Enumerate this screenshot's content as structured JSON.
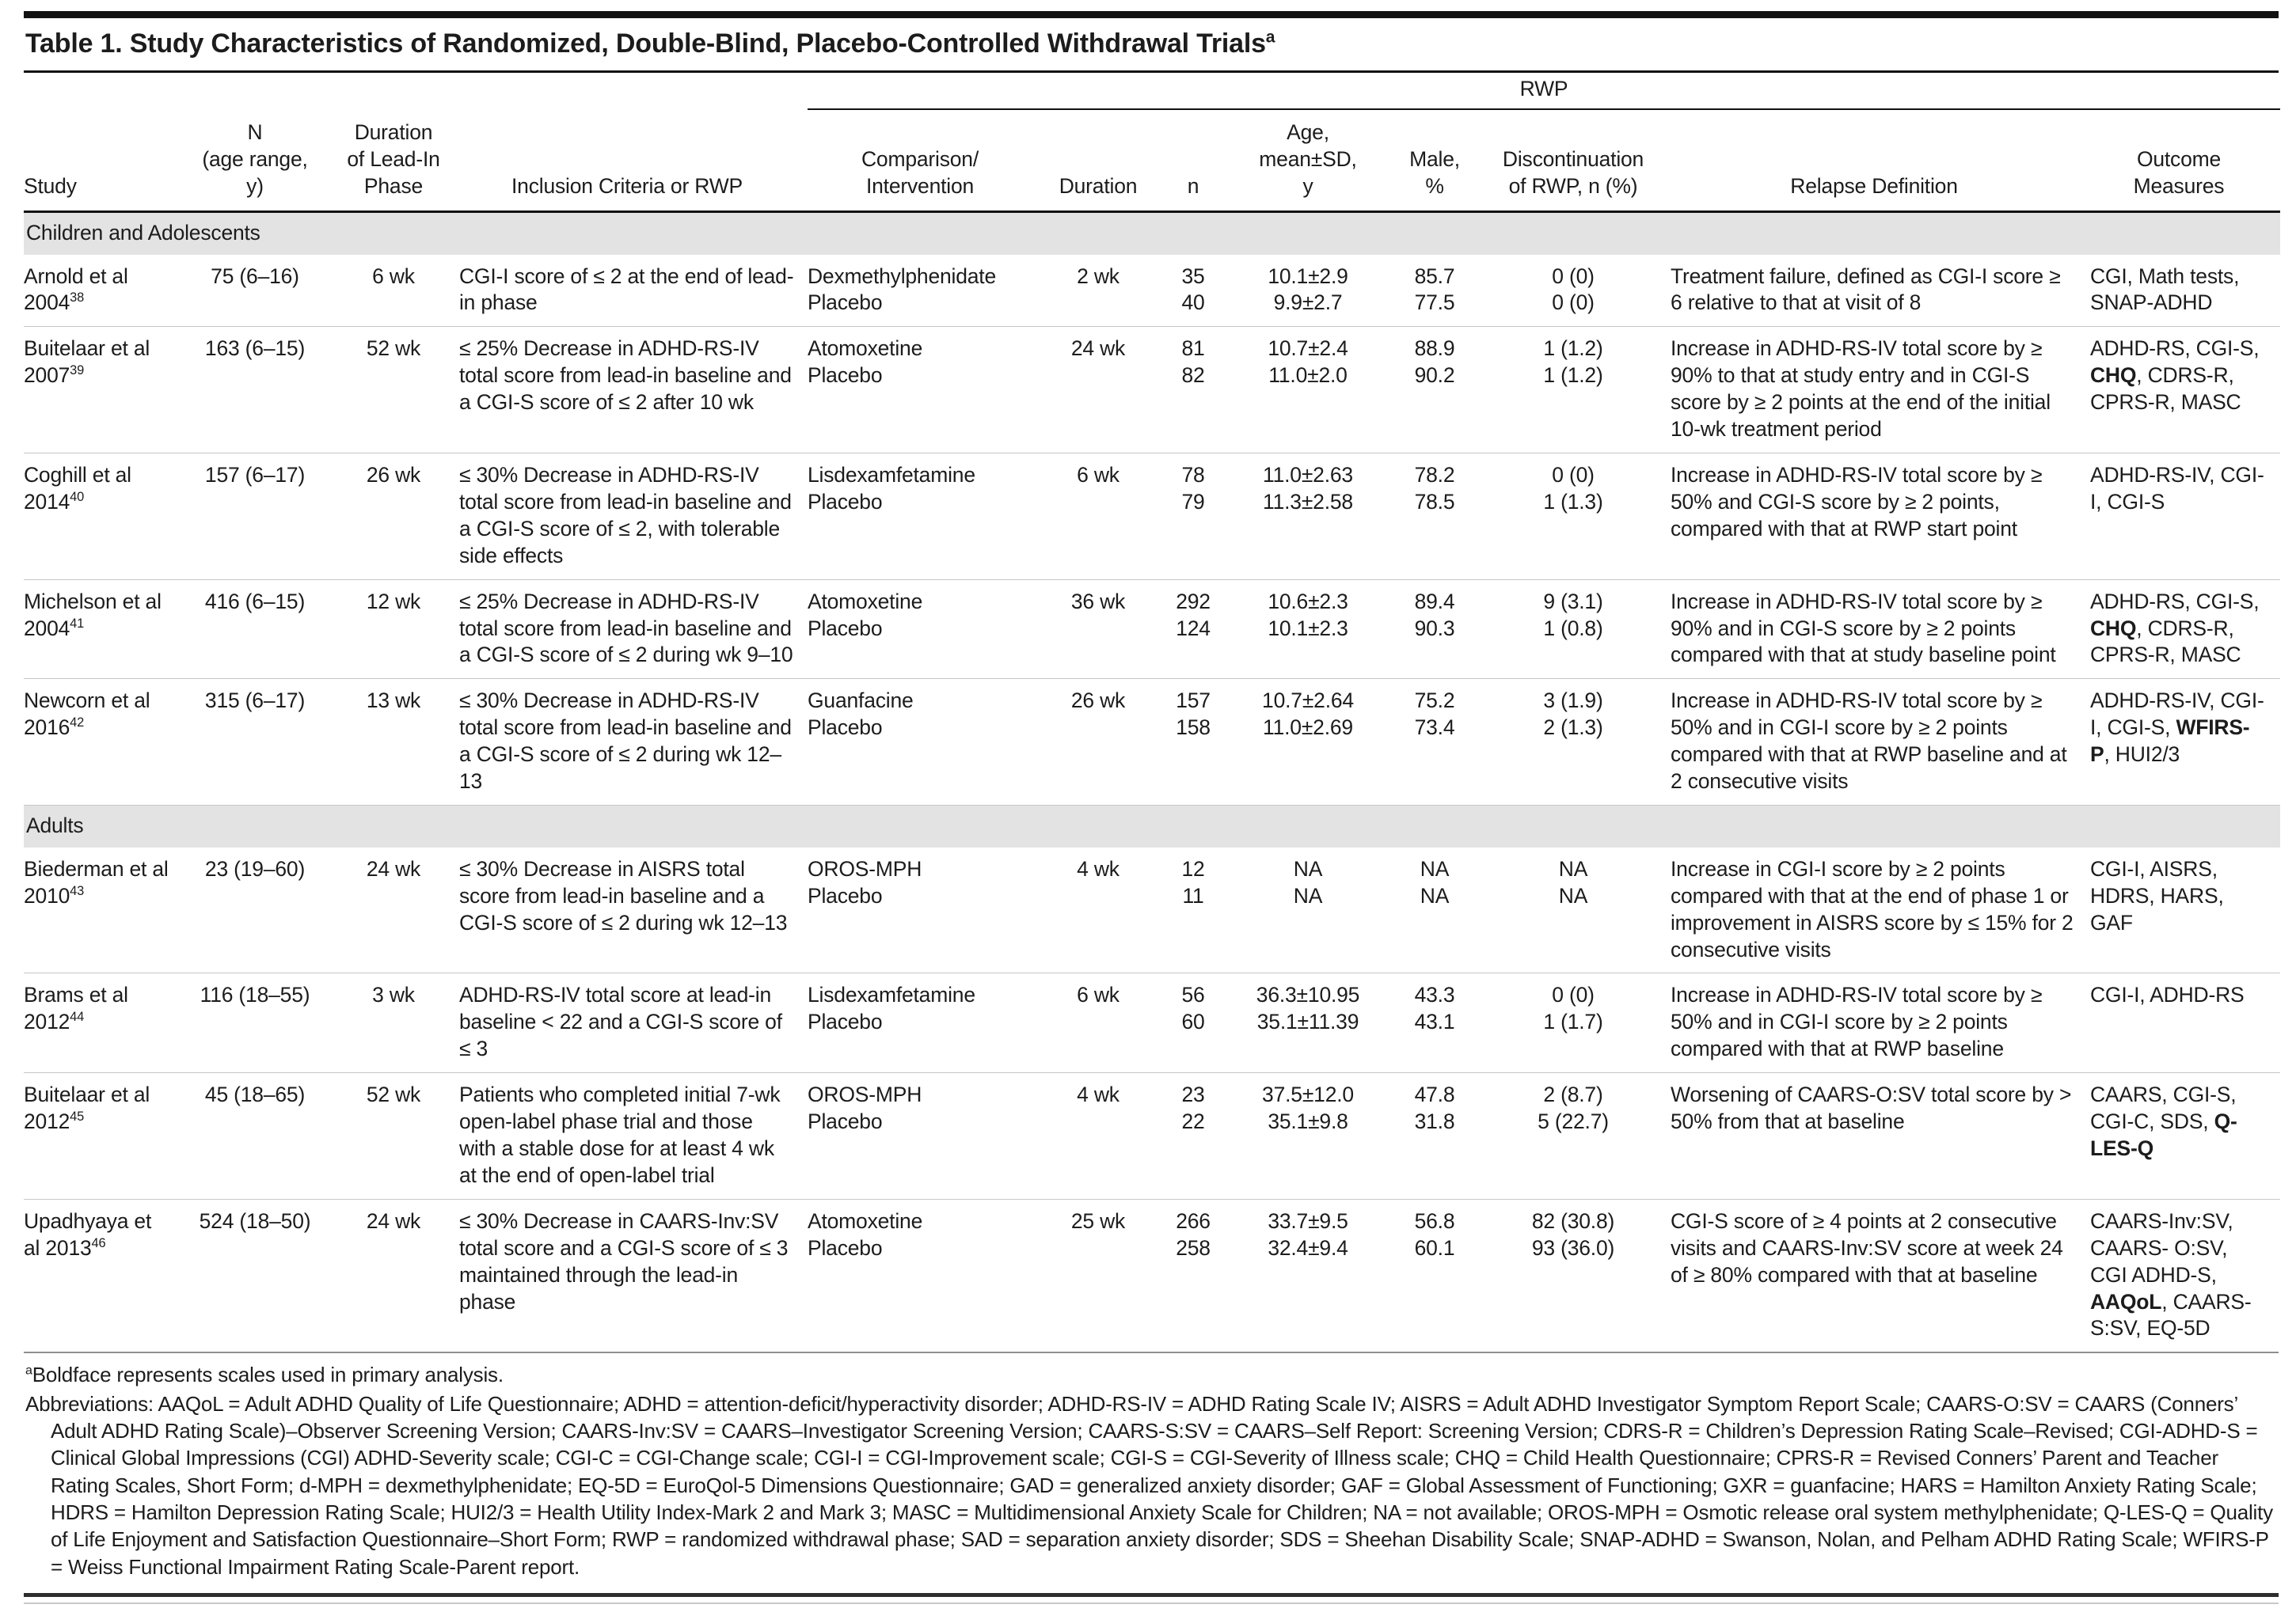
{
  "title": {
    "text": "Table 1. Study Characteristics of Randomized, Double-Blind, Placebo-Controlled Withdrawal Trials",
    "sup": "a"
  },
  "header": {
    "spanner": "RWP",
    "columns": [
      "Study",
      "N\n(age range,\ny)",
      "Duration\nof Lead-In\nPhase",
      "Inclusion Criteria or RWP",
      "Comparison/\nIntervention",
      "Duration",
      "n",
      "Age,\nmean±SD,\ny",
      "Male,\n%",
      "Discontinuation\nof RWP, n (%)",
      "Relapse Definition",
      "Outcome Measures"
    ]
  },
  "sections": [
    {
      "label": "Children and Adolescents",
      "rows": [
        {
          "study": {
            "name": "Arnold et al 2004",
            "ref": "38"
          },
          "n_age": "75 (6–16)",
          "lead_in": "6 wk",
          "inclusion": "CGI-I score of ≤ 2 at the end of lead-in phase",
          "arms": [
            "Dexmethylphenidate",
            "Placebo"
          ],
          "rwp_duration": "2 wk",
          "n": [
            "35",
            "40"
          ],
          "age": [
            "10.1±2.9",
            "9.9±2.7"
          ],
          "male_pct": [
            "85.7",
            "77.5"
          ],
          "discontinuation": [
            "0 (0)",
            "0 (0)"
          ],
          "relapse": "Treatment failure, defined as CGI-I score ≥ 6 relative to that at visit of 8",
          "outcomes": [
            {
              "t": "CGI, Math tests, SNAP-ADHD",
              "b": false
            }
          ]
        },
        {
          "study": {
            "name": "Buitelaar et al 2007",
            "ref": "39"
          },
          "n_age": "163 (6–15)",
          "lead_in": "52 wk",
          "inclusion": "≤ 25% Decrease in ADHD-RS-IV total score from lead-in baseline and a CGI-S score of ≤ 2 after 10 wk",
          "arms": [
            "Atomoxetine",
            "Placebo"
          ],
          "rwp_duration": "24 wk",
          "n": [
            "81",
            "82"
          ],
          "age": [
            "10.7±2.4",
            "11.0±2.0"
          ],
          "male_pct": [
            "88.9",
            "90.2"
          ],
          "discontinuation": [
            "1 (1.2)",
            "1 (1.2)"
          ],
          "relapse": "Increase in ADHD-RS-IV total score by ≥ 90% to that at study entry and in CGI-S score by ≥ 2 points at the end of the initial 10-wk treatment period",
          "outcomes": [
            {
              "t": "ADHD-RS, CGI-S, ",
              "b": false
            },
            {
              "t": "CHQ",
              "b": true
            },
            {
              "t": ", CDRS-R, CPRS-R, MASC",
              "b": false
            }
          ]
        },
        {
          "study": {
            "name": "Coghill et al 2014",
            "ref": "40"
          },
          "n_age": "157 (6–17)",
          "lead_in": "26 wk",
          "inclusion": "≤ 30% Decrease in ADHD-RS-IV total score from lead-in baseline and a CGI-S score of ≤ 2, with tolerable side effects",
          "arms": [
            "Lisdexamfetamine",
            "Placebo"
          ],
          "rwp_duration": "6 wk",
          "n": [
            "78",
            "79"
          ],
          "age": [
            "11.0±2.63",
            "11.3±2.58"
          ],
          "male_pct": [
            "78.2",
            "78.5"
          ],
          "discontinuation": [
            "0 (0)",
            "1 (1.3)"
          ],
          "relapse": "Increase in ADHD-RS-IV total score by ≥ 50% and CGI-S score by ≥ 2 points, compared with that at RWP start point",
          "outcomes": [
            {
              "t": "ADHD-RS-IV, CGI-I, CGI-S",
              "b": false
            }
          ]
        },
        {
          "study": {
            "name": "Michelson et al 2004",
            "ref": "41"
          },
          "n_age": "416 (6–15)",
          "lead_in": "12 wk",
          "inclusion": "≤ 25% Decrease in ADHD-RS-IV total score from lead-in baseline and a CGI-S score of ≤ 2 during wk 9–10",
          "arms": [
            "Atomoxetine",
            "Placebo"
          ],
          "rwp_duration": "36 wk",
          "n": [
            "292",
            "124"
          ],
          "age": [
            "10.6±2.3",
            "10.1±2.3"
          ],
          "male_pct": [
            "89.4",
            "90.3"
          ],
          "discontinuation": [
            "9 (3.1)",
            "1 (0.8)"
          ],
          "relapse": "Increase in ADHD-RS-IV total score by ≥ 90% and in CGI-S score by ≥ 2 points compared with that at study baseline point",
          "outcomes": [
            {
              "t": "ADHD-RS, CGI-S, ",
              "b": false
            },
            {
              "t": "CHQ",
              "b": true
            },
            {
              "t": ", CDRS-R, CPRS-R, MASC",
              "b": false
            }
          ]
        },
        {
          "study": {
            "name": "Newcorn et al 2016",
            "ref": "42"
          },
          "n_age": "315 (6–17)",
          "lead_in": "13 wk",
          "inclusion": "≤ 30% Decrease in ADHD-RS-IV total score from lead-in baseline and a CGI-S score of ≤ 2 during wk 12–13",
          "arms": [
            "Guanfacine",
            "Placebo"
          ],
          "rwp_duration": "26 wk",
          "n": [
            "157",
            "158"
          ],
          "age": [
            "10.7±2.64",
            "11.0±2.69"
          ],
          "male_pct": [
            "75.2",
            "73.4"
          ],
          "discontinuation": [
            "3 (1.9)",
            "2 (1.3)"
          ],
          "relapse": "Increase in ADHD-RS-IV total score by ≥ 50% and in CGI-I score by ≥ 2 points compared with that at RWP baseline and at 2 consecutive visits",
          "outcomes": [
            {
              "t": "ADHD-RS-IV, CGI-I, CGI-S, ",
              "b": false
            },
            {
              "t": "WFIRS-P",
              "b": true
            },
            {
              "t": ", HUI2/3",
              "b": false
            }
          ]
        }
      ]
    },
    {
      "label": "Adults",
      "rows": [
        {
          "study": {
            "name": "Biederman et al 2010",
            "ref": "43"
          },
          "n_age": "23 (19–60)",
          "lead_in": "24 wk",
          "inclusion": "≤ 30% Decrease in AISRS total score from lead-in baseline and a CGI-S score of ≤ 2 during wk 12–13",
          "arms": [
            "OROS-MPH",
            "Placebo"
          ],
          "rwp_duration": "4 wk",
          "n": [
            "12",
            "11"
          ],
          "age": [
            "NA",
            "NA"
          ],
          "male_pct": [
            "NA",
            "NA"
          ],
          "discontinuation": [
            "NA",
            "NA"
          ],
          "relapse": "Increase in CGI-I score by ≥ 2 points compared with that at the end of phase 1 or improvement in AISRS score by ≤ 15% for 2 consecutive visits",
          "outcomes": [
            {
              "t": "CGI-I, AISRS, HDRS, HARS, GAF",
              "b": false
            }
          ]
        },
        {
          "study": {
            "name": "Brams et al 2012",
            "ref": "44"
          },
          "n_age": "116 (18–55)",
          "lead_in": "3 wk",
          "inclusion": "ADHD-RS-IV total score at lead-in baseline < 22 and a CGI-S score of ≤ 3",
          "arms": [
            "Lisdexamfetamine",
            "Placebo"
          ],
          "rwp_duration": "6 wk",
          "n": [
            "56",
            "60"
          ],
          "age": [
            "36.3±10.95",
            "35.1±11.39"
          ],
          "male_pct": [
            "43.3",
            "43.1"
          ],
          "discontinuation": [
            "0 (0)",
            "1 (1.7)"
          ],
          "relapse": "Increase in ADHD-RS-IV total score by ≥ 50% and in CGI-I score by ≥ 2 points compared with that at RWP baseline",
          "outcomes": [
            {
              "t": "CGI-I, ADHD-RS",
              "b": false
            }
          ]
        },
        {
          "study": {
            "name": "Buitelaar et al 2012",
            "ref": "45"
          },
          "n_age": "45 (18–65)",
          "lead_in": "52 wk",
          "inclusion": "Patients who completed initial 7-wk open-label phase trial and those with a stable dose for at least 4 wk at the end of open-label trial",
          "arms": [
            "OROS-MPH",
            "Placebo"
          ],
          "rwp_duration": "4 wk",
          "n": [
            "23",
            "22"
          ],
          "age": [
            "37.5±12.0",
            "35.1±9.8"
          ],
          "male_pct": [
            "47.8",
            "31.8"
          ],
          "discontinuation": [
            "2 (8.7)",
            "5 (22.7)"
          ],
          "relapse": "Worsening of CAARS-O:SV total score by > 50% from that at baseline",
          "outcomes": [
            {
              "t": "CAARS, CGI-S, CGI-C, SDS, ",
              "b": false
            },
            {
              "t": "Q-LES-Q",
              "b": true
            }
          ]
        },
        {
          "study": {
            "name": "Upadhyaya et al 2013",
            "ref": "46"
          },
          "n_age": "524 (18–50)",
          "lead_in": "24 wk",
          "inclusion": "≤ 30% Decrease in CAARS-Inv:SV total score and a CGI-S score of ≤ 3 maintained through the lead-in phase",
          "arms": [
            "Atomoxetine",
            "Placebo"
          ],
          "rwp_duration": "25 wk",
          "n": [
            "266",
            "258"
          ],
          "age": [
            "33.7±9.5",
            "32.4±9.4"
          ],
          "male_pct": [
            "56.8",
            "60.1"
          ],
          "discontinuation": [
            "82 (30.8)",
            "93 (36.0)"
          ],
          "relapse": "CGI-S score of ≥ 4 points at 2 consecutive visits and CAARS-Inv:SV score at week 24 of ≥ 80% compared with that at baseline",
          "outcomes": [
            {
              "t": "CAARS-Inv:SV, CAARS- O:SV, CGI ADHD-S, ",
              "b": false
            },
            {
              "t": "AAQoL",
              "b": true
            },
            {
              "t": ", CAARS-S:SV, EQ-5D",
              "b": false
            }
          ]
        }
      ]
    }
  ],
  "footnotes": {
    "a_marker": "a",
    "a_text": "Boldface represents scales used in primary analysis.",
    "abbreviations": "Abbreviations: AAQoL = Adult ADHD Quality of Life Questionnaire; ADHD = attention-deficit/hyperactivity disorder; ADHD-RS-IV = ADHD Rating Scale IV; AISRS = Adult ADHD Investigator Symptom Report Scale; CAARS-O:SV = CAARS (Conners’ Adult ADHD Rating Scale)–Observer Screening Version; CAARS-Inv:SV =  CAARS–Investigator Screening Version; CAARS-S:SV = CAARS–Self Report: Screening Version; CDRS-R = Children’s Depression Rating Scale–Revised; CGI-ADHD-S = Clinical Global Impressions (CGI) ADHD-Severity scale; CGI-C = CGI-Change scale; CGI-I = CGI-Improvement scale; CGI-S = CGI-Severity of Illness scale; CHQ = Child Health Questionnaire; CPRS-R = Revised Conners’ Parent and Teacher Rating Scales, Short Form; d-MPH = dexmethylphenidate; EQ-5D = EuroQol-5 Dimensions Questionnaire; GAD = generalized anxiety disorder; GAF = Global Assessment of Functioning; GXR = guanfacine; HARS = Hamilton Anxiety Rating Scale; HDRS = Hamilton Depression Rating Scale; HUI2/3 = Health Utility Index-Mark 2 and Mark 3; MASC = Multidimensional Anxiety Scale for Children; NA = not available; OROS-MPH = Osmotic release oral system methylphenidate; Q-LES-Q = Quality of Life Enjoyment and Satisfaction Questionnaire–Short Form; RWP = randomized withdrawal phase; SAD = separation anxiety disorder; SDS = Sheehan Disability Scale; SNAP-ADHD = Swanson, Nolan, and Pelham ADHD Rating Scale; WFIRS-P = Weiss Functional Impairment Rating Scale-Parent report."
  }
}
